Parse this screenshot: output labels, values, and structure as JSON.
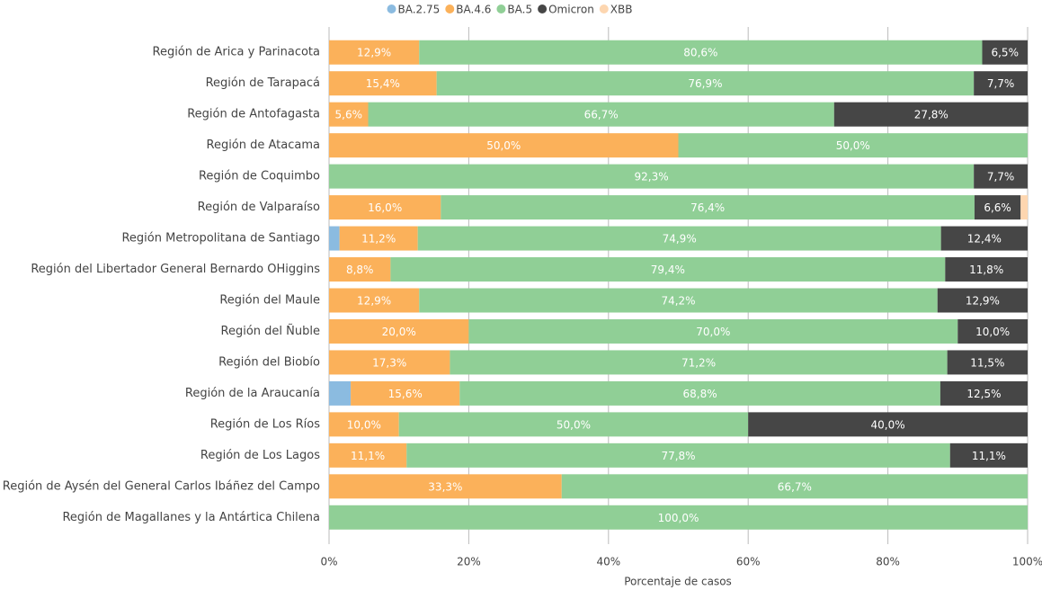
{
  "chart_data": {
    "type": "stacked_bar_horizontal",
    "categories": [
      "Región de Arica y Parinacota",
      "Región de Tarapacá",
      "Región de Antofagasta",
      "Región de Atacama",
      "Región de Coquimbo",
      "Región de Valparaíso",
      "Región Metropolitana de Santiago",
      "Región del Libertador General Bernardo OHiggins",
      "Región del Maule",
      "Región del Ñuble",
      "Región del Biobío",
      "Región de la Araucanía",
      "Región de Los Ríos",
      "Región de Los Lagos",
      "Región de Aysén del General Carlos Ibáñez del Campo",
      "Región de Magallanes y la Antártica Chilena"
    ],
    "series": [
      {
        "name": "BA.2.75",
        "color": "#8bbbe0",
        "values": [
          null,
          null,
          null,
          null,
          null,
          null,
          1.5,
          null,
          null,
          null,
          null,
          3.1,
          null,
          null,
          null,
          null
        ],
        "value_labels": [
          null,
          null,
          null,
          null,
          null,
          null,
          null,
          null,
          null,
          null,
          null,
          null,
          null,
          null,
          null,
          null
        ]
      },
      {
        "name": "BA.4.6",
        "color": "#fbb15a",
        "values": [
          12.9,
          15.4,
          5.6,
          50.0,
          null,
          16.0,
          11.2,
          8.8,
          12.9,
          20.0,
          17.3,
          15.6,
          10.0,
          11.1,
          33.3,
          null
        ],
        "value_labels": [
          "12,9%",
          "15,4%",
          "5,6%",
          "50,0%",
          null,
          "16,0%",
          "11,2%",
          "8,8%",
          "12,9%",
          "20,0%",
          "17,3%",
          "15,6%",
          "10,0%",
          "11,1%",
          "33,3%",
          null
        ]
      },
      {
        "name": "BA.5",
        "color": "#90cf96",
        "values": [
          80.6,
          76.9,
          66.7,
          50.0,
          92.3,
          76.4,
          74.9,
          79.4,
          74.2,
          70.0,
          71.2,
          68.8,
          50.0,
          77.8,
          66.7,
          100.0
        ],
        "value_labels": [
          "80,6%",
          "76,9%",
          "66,7%",
          "50,0%",
          "92,3%",
          "76,4%",
          "74,9%",
          "79,4%",
          "74,2%",
          "70,0%",
          "71,2%",
          "68,8%",
          "50,0%",
          "77,8%",
          "66,7%",
          "100,0%"
        ]
      },
      {
        "name": "Omicron",
        "color": "#464646",
        "values": [
          6.5,
          7.7,
          27.8,
          null,
          7.7,
          6.6,
          12.4,
          11.8,
          12.9,
          10.0,
          11.5,
          12.5,
          40.0,
          11.1,
          null,
          null
        ],
        "value_labels": [
          "6,5%",
          "7,7%",
          "27,8%",
          null,
          "7,7%",
          "6,6%",
          "12,4%",
          "11,8%",
          "12,9%",
          "10,0%",
          "11,5%",
          "12,5%",
          "40,0%",
          "11,1%",
          null,
          null
        ]
      },
      {
        "name": "XBB",
        "color": "#fdd6b0",
        "values": [
          null,
          null,
          null,
          null,
          null,
          1.0,
          null,
          null,
          null,
          null,
          null,
          null,
          null,
          null,
          null,
          null
        ],
        "value_labels": [
          null,
          null,
          null,
          null,
          null,
          null,
          null,
          null,
          null,
          null,
          null,
          null,
          null,
          null,
          null,
          null
        ]
      }
    ],
    "xlabel": "Porcentaje de casos",
    "xlim": [
      0,
      100
    ],
    "xticks": [
      {
        "value": 0,
        "label": "0%"
      },
      {
        "value": 20,
        "label": "20%"
      },
      {
        "value": 40,
        "label": "40%"
      },
      {
        "value": 60,
        "label": "60%"
      },
      {
        "value": 80,
        "label": "80%"
      },
      {
        "value": 100,
        "label": "100%"
      }
    ],
    "grid": true,
    "legend": "top"
  }
}
